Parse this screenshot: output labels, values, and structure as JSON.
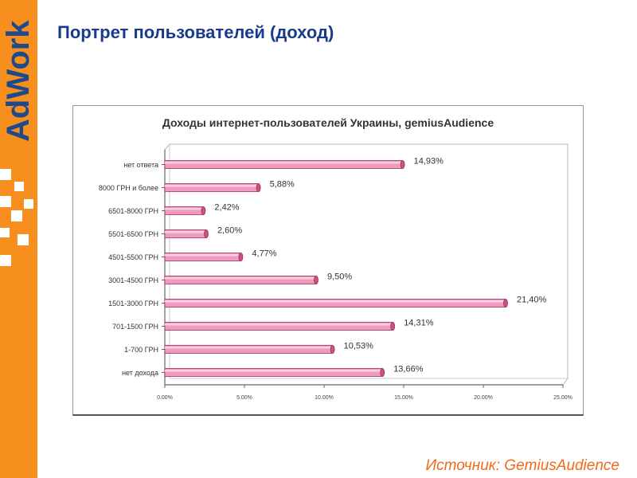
{
  "slide": {
    "title": "Портрет пользователей (доход)",
    "source": "Источник: GemiusAudience",
    "logo_text": "AdWork"
  },
  "colors": {
    "brand_orange": "#f78f1e",
    "title_blue": "#1a3b8c",
    "bar_fill": "#ee9bbf",
    "bar_stroke": "#a0305e"
  },
  "chart_data": {
    "type": "bar",
    "orientation": "horizontal",
    "title": "Доходы интернет-пользователей Украины, gemiusAudience",
    "categories": [
      "нет ответа",
      "8000 ГРН и более",
      "6501-8000 ГРН",
      "5501-6500 ГРН",
      "4501-5500 ГРН",
      "3001-4500 ГРН",
      "1501-3000 ГРН",
      "701-1500 ГРН",
      "1-700 ГРН",
      "нет дохода"
    ],
    "values": [
      14.93,
      5.88,
      2.42,
      2.6,
      4.77,
      9.5,
      21.4,
      14.31,
      10.53,
      13.66
    ],
    "value_labels": [
      "14,93%",
      "5,88%",
      "2,42%",
      "2,60%",
      "4,77%",
      "9,50%",
      "21,40%",
      "14,31%",
      "10,53%",
      "13,66%"
    ],
    "xlim": [
      0,
      25
    ],
    "x_ticks": [
      "0.00%",
      "5.00%",
      "10.00%",
      "15.00%",
      "20.00%",
      "25.00%"
    ],
    "grid": false,
    "legend": "none"
  }
}
